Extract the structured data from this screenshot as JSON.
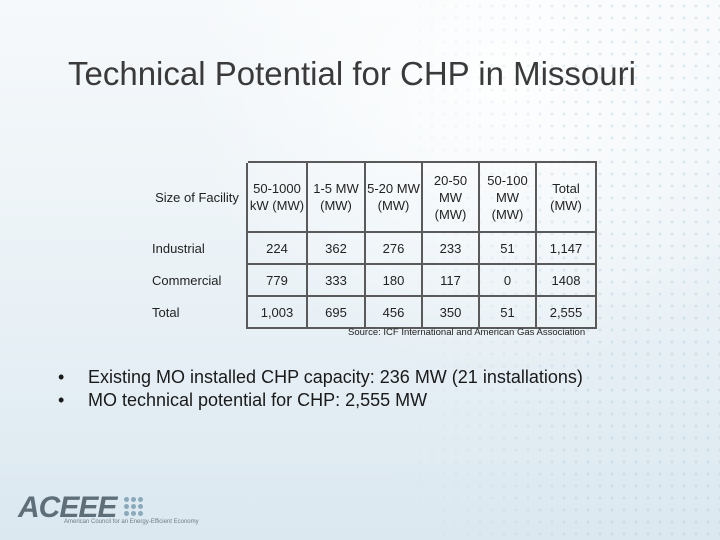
{
  "slide": {
    "title": "Technical Potential for CHP in Missouri"
  },
  "table": {
    "header": {
      "facility": "Size of Facility",
      "columns": [
        "50-1000 kW (MW)",
        "1-5 MW (MW)",
        "5-20 MW (MW)",
        "20-50 MW (MW)",
        "50-100 MW (MW)",
        "Total (MW)"
      ]
    },
    "rows": [
      {
        "label": "Industrial",
        "values": [
          "224",
          "362",
          "276",
          "233",
          "51",
          "1,147"
        ]
      },
      {
        "label": "Commercial",
        "values": [
          "779",
          "333",
          "180",
          "117",
          "0",
          "1408"
        ]
      },
      {
        "label": "Total",
        "values": [
          "1,003",
          "695",
          "456",
          "350",
          "51",
          "2,555"
        ]
      }
    ],
    "source": "Source: ICF International and American Gas Association"
  },
  "bullets": [
    "Existing MO installed CHP capacity: 236 MW (21 installations)",
    "MO technical potential for CHP: 2,555 MW"
  ],
  "logo": {
    "text": "ACEEE",
    "tagline": "American Council for an Energy-Efficient Economy"
  },
  "colors": {
    "title": "#3a3a3a",
    "logo": "#5f6f79",
    "border": "#5a5a5a"
  }
}
